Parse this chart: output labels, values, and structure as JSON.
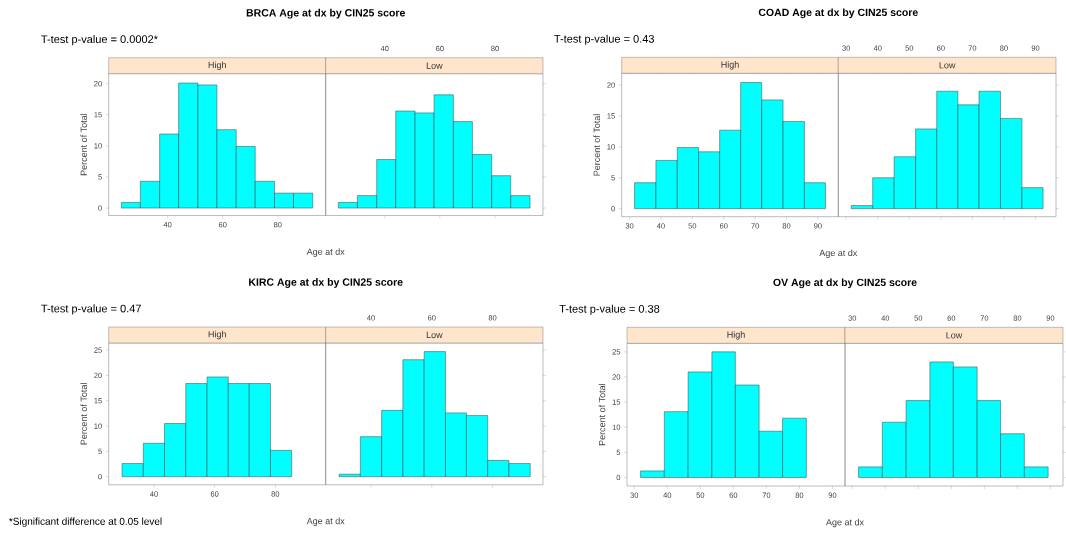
{
  "chart_data": [
    {
      "type": "histogram",
      "title": "BRCA Age at dx by CIN25 score",
      "subtitle": "High",
      "xlabel": "Age at dx",
      "ylabel": "Percent of Total",
      "annotations": [
        "T-test p-value = 0.0002*"
      ],
      "color": "#00ffff",
      "bins": [
        23.2,
        30.1,
        37.1,
        44.0,
        51.0,
        57.9,
        64.9,
        71.8,
        78.8,
        85.7,
        92.7
      ],
      "values": [
        0.9,
        4.3,
        11.9,
        20.1,
        19.8,
        12.6,
        9.9,
        4.3,
        2.4,
        2.4
      ],
      "xlim": [
        18.6,
        97.4
      ],
      "xticks": [
        40,
        60,
        80
      ],
      "ylim": [
        -1.2,
        21.6
      ],
      "yticks": [
        0,
        5,
        10,
        15,
        20
      ]
    },
    {
      "type": "histogram",
      "subtitle": "Low",
      "color": "#00ffff",
      "bins": [
        23.2,
        30.1,
        37.1,
        44.0,
        51.0,
        57.9,
        64.9,
        71.8,
        78.8,
        85.7,
        92.7
      ],
      "values": [
        0.9,
        2.0,
        7.8,
        15.6,
        15.3,
        18.2,
        13.9,
        8.6,
        5.2,
        2.0
      ],
      "xlim": [
        18.6,
        97.4
      ],
      "xticks": [
        40,
        60,
        80
      ],
      "ylim": [
        -1.2,
        21.6
      ],
      "yticks": [
        0,
        5,
        10,
        15,
        20
      ],
      "tick_labels": "x"
    },
    {
      "type": "histogram",
      "title": "COAD Age at dx by CIN25 score",
      "subtitle": "High",
      "xlabel": "Age at dx",
      "ylabel": "Percent of Total",
      "annotations": [
        "T-test p-value = 0.43"
      ],
      "color": "#00ffff",
      "bins": [
        31.6,
        38.4,
        45.2,
        52.0,
        58.7,
        65.4,
        72.1,
        78.9,
        85.7,
        92.4
      ],
      "values": [
        4.2,
        7.8,
        9.9,
        9.2,
        12.7,
        20.4,
        17.6,
        14.1,
        4.2
      ],
      "xlim": [
        27.5,
        96.5
      ],
      "xticks": [
        30,
        40,
        50,
        60,
        70,
        80,
        90
      ],
      "ylim": [
        -1.3,
        21.9
      ],
      "yticks": [
        0,
        5,
        10,
        15,
        20
      ]
    },
    {
      "type": "histogram",
      "subtitle": "Low",
      "color": "#00ffff",
      "bins": [
        31.6,
        38.4,
        45.2,
        52.0,
        58.7,
        65.4,
        72.1,
        78.9,
        85.7,
        92.4
      ],
      "values": [
        0.5,
        5.0,
        8.4,
        12.9,
        19.0,
        16.8,
        19.0,
        14.6,
        3.4
      ],
      "xlim": [
        27.5,
        96.5
      ],
      "xticks": [
        30,
        40,
        50,
        60,
        70,
        80,
        90
      ],
      "ylim": [
        -1.3,
        21.9
      ],
      "yticks": [
        0,
        5,
        10,
        15,
        20
      ],
      "tick_labels": "x"
    },
    {
      "type": "histogram",
      "title": "KIRC Age at dx by CIN25 score",
      "subtitle": "High",
      "xlabel": "Age at dx",
      "ylabel": "Percent of Total",
      "annotations": [
        "T-test p-value = 0.47",
        "*Significant difference at 0.05 level"
      ],
      "color": "#00ffff",
      "bins": [
        29.5,
        36.5,
        43.5,
        50.5,
        57.5,
        64.5,
        71.4,
        78.4,
        85.4,
        92.4
      ],
      "values": [
        2.6,
        6.6,
        10.5,
        18.4,
        19.7,
        18.4,
        18.4,
        5.2,
        0
      ],
      "xlim": [
        25.1,
        96.6
      ],
      "xticks": [
        40,
        60,
        80
      ],
      "ylim": [
        -1.6,
        26.4
      ],
      "yticks": [
        0,
        5,
        10,
        15,
        20,
        25
      ]
    },
    {
      "type": "histogram",
      "subtitle": "Low",
      "color": "#00ffff",
      "bins": [
        29.5,
        36.5,
        43.5,
        50.5,
        57.5,
        64.5,
        71.4,
        78.4,
        85.4,
        92.4
      ],
      "values": [
        0.5,
        7.9,
        13.1,
        23.1,
        24.7,
        12.6,
        12.1,
        3.2,
        2.6
      ],
      "xlim": [
        25.1,
        96.6
      ],
      "xticks": [
        40,
        60,
        80
      ],
      "ylim": [
        -1.6,
        26.4
      ],
      "yticks": [
        0,
        5,
        10,
        15,
        20,
        25
      ],
      "tick_labels": "x"
    },
    {
      "type": "histogram",
      "title": "OV Age at dx by CIN25 score",
      "subtitle": "High",
      "xlabel": "Age at dx",
      "ylabel": "Percent of Total",
      "annotations": [
        "T-test p-value = 0.38"
      ],
      "color": "#00ffff",
      "bins": [
        31.9,
        39.1,
        46.3,
        53.5,
        60.6,
        67.8,
        74.9,
        82.1,
        89.3
      ],
      "values": [
        1.3,
        13.1,
        21.0,
        25.0,
        18.4,
        9.2,
        11.8,
        0
      ],
      "xlim": [
        27.8,
        93.8
      ],
      "xticks": [
        30,
        40,
        50,
        60,
        70,
        80,
        90
      ],
      "ylim": [
        -1.7,
        26.7
      ],
      "yticks": [
        0,
        5,
        10,
        15,
        20,
        25
      ]
    },
    {
      "type": "histogram",
      "subtitle": "Low",
      "color": "#00ffff",
      "bins": [
        31.9,
        39.1,
        46.3,
        53.5,
        60.6,
        67.8,
        74.9,
        82.1,
        89.3
      ],
      "values": [
        2.1,
        11.0,
        15.3,
        23.0,
        22.0,
        15.3,
        8.7,
        2.1
      ],
      "xlim": [
        27.8,
        93.8
      ],
      "xticks": [
        30,
        40,
        50,
        60,
        70,
        80,
        90
      ],
      "ylim": [
        -1.7,
        26.7
      ],
      "yticks": [
        0,
        5,
        10,
        15,
        20,
        25
      ],
      "tick_labels": "x"
    }
  ]
}
